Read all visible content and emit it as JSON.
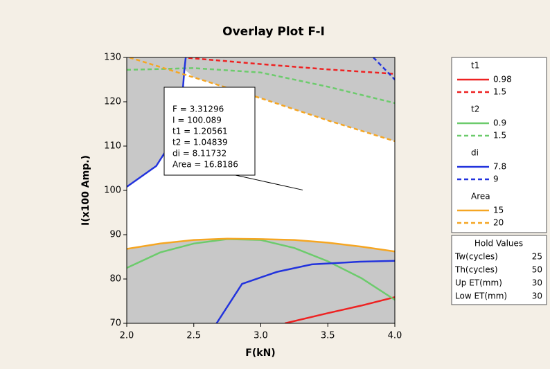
{
  "chart_data": {
    "type": "contour",
    "title": "Overlay Plot F-I",
    "x_label": "F(kN)",
    "y_label": "I(x100 Amp.)",
    "xlim": [
      2.0,
      4.0
    ],
    "ylim": [
      70,
      130
    ],
    "xticks": [
      {
        "value": 2.0,
        "label": "2.0"
      },
      2.5,
      {
        "value": 3.0,
        "label": "3.0"
      },
      3.5,
      {
        "value": 4.0,
        "label": "4.0"
      }
    ],
    "yticks": [
      70,
      80,
      90,
      100,
      110,
      120,
      130
    ],
    "series": [
      {
        "group": "t1",
        "name": "0.98",
        "color": "#ee2222",
        "dashed": false,
        "x": [
          3.18,
          3.5,
          3.75,
          4.0
        ],
        "values": [
          70,
          72.3,
          74,
          75.9
        ]
      },
      {
        "name": "1.5",
        "color": "#ee2222",
        "dashed": true,
        "x": [
          2.46,
          3.0,
          3.5,
          4.0
        ],
        "values": [
          129.9,
          128.5,
          127.3,
          126.3
        ]
      },
      {
        "group": "t2",
        "name": "0.9",
        "color": "#6ccb6c",
        "dashed": false,
        "x": [
          2.0,
          2.25,
          2.5,
          2.75,
          3.0,
          3.25,
          3.5,
          3.75,
          4.0
        ],
        "values": [
          82.5,
          86,
          88,
          89,
          88.8,
          87,
          84,
          80.2,
          75.3
        ]
      },
      {
        "name": "1.5",
        "color": "#6ccb6c",
        "dashed": true,
        "x": [
          2.0,
          2.5,
          3.0,
          3.5,
          4.0
        ],
        "values": [
          127.2,
          127.6,
          126.6,
          123.4,
          119.7
        ]
      },
      {
        "group": "di",
        "name": "7.8",
        "color": "#2233dd",
        "dashed": false,
        "x": [
          2.0,
          2.22,
          2.35,
          2.41,
          2.43,
          2.44,
          null,
          2.67,
          2.86,
          3.12,
          3.38,
          3.74,
          4.0
        ],
        "values": [
          100.8,
          105.5,
          111.7,
          119.5,
          127.3,
          130,
          null,
          70,
          78.9,
          81.6,
          83.3,
          83.9,
          84.1
        ]
      },
      {
        "name": "9",
        "color": "#2233dd",
        "dashed": true,
        "x": [
          3.84,
          3.92,
          4.0
        ],
        "values": [
          130,
          127.5,
          125
        ]
      },
      {
        "group": "Area",
        "name": "15",
        "color": "#f5a623",
        "dashed": false,
        "x": [
          2.0,
          2.25,
          2.5,
          2.75,
          3.0,
          3.25,
          3.5,
          3.75,
          4.0
        ],
        "values": [
          86.8,
          88,
          88.8,
          89.1,
          89,
          88.8,
          88.2,
          87.3,
          86.2
        ]
      },
      {
        "name": "20",
        "color": "#f5a623",
        "dashed": true,
        "x": [
          2.02,
          2.5,
          3.0,
          3.5,
          4.0
        ],
        "values": [
          130,
          125.5,
          120.8,
          115.8,
          111.1
        ]
      }
    ],
    "crosshair": {
      "x": 3.31296,
      "y": 100.089,
      "lines": [
        "F = 3.31296",
        "I = 100.089",
        "t1 = 1.20561",
        "t2 = 1.04839",
        "di = 8.11732",
        "Area = 16.8186"
      ]
    },
    "hold_values": {
      "title": "Hold Values",
      "rows": [
        {
          "name": "Tw(cycles)",
          "value": "25"
        },
        {
          "name": "Th(cycles)",
          "value": "50"
        },
        {
          "name": "Up ET(mm)",
          "value": "30"
        },
        {
          "name": "Low ET(mm)",
          "value": "30"
        }
      ]
    }
  }
}
